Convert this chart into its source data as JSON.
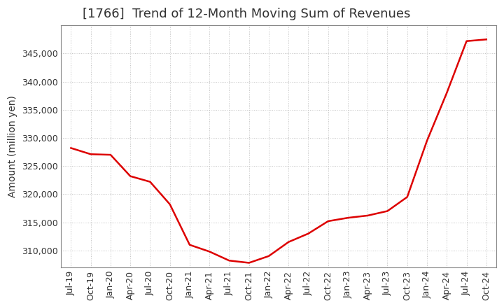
{
  "title": "[1766]  Trend of 12-Month Moving Sum of Revenues",
  "ylabel": "Amount (million yen)",
  "line_color": "#dd0000",
  "background_color": "#ffffff",
  "plot_bg_color": "#ffffff",
  "grid_color": "#999999",
  "x_labels": [
    "Jul-19",
    "Oct-19",
    "Jan-20",
    "Apr-20",
    "Jul-20",
    "Oct-20",
    "Jan-21",
    "Apr-21",
    "Jul-21",
    "Oct-21",
    "Jan-22",
    "Apr-22",
    "Jul-22",
    "Oct-22",
    "Jan-23",
    "Apr-23",
    "Jul-23",
    "Oct-23",
    "Jan-24",
    "Apr-24",
    "Jul-24",
    "Oct-24"
  ],
  "y_values": [
    328200,
    327100,
    327000,
    323200,
    322200,
    318200,
    311000,
    309800,
    308200,
    307800,
    309000,
    311500,
    313000,
    315200,
    315800,
    316200,
    317000,
    319500,
    329500,
    338000,
    347200,
    347500
  ],
  "ylim": [
    307000,
    350000
  ],
  "yticks": [
    310000,
    315000,
    320000,
    325000,
    330000,
    335000,
    340000,
    345000
  ],
  "title_fontsize": 13,
  "title_color": "#333333",
  "axis_label_fontsize": 10,
  "tick_fontsize": 9,
  "line_width": 1.8
}
